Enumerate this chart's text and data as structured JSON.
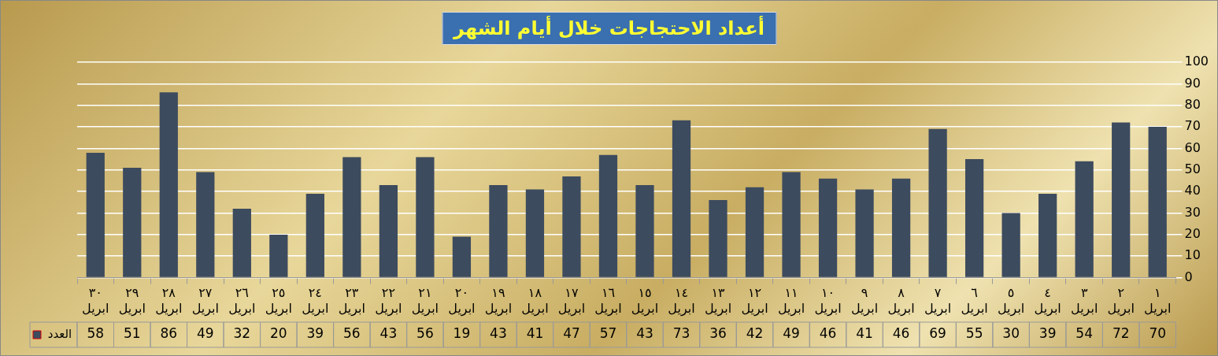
{
  "chart_data": {
    "type": "bar",
    "title": "أعداد الاحتجاجات خلال أيام الشهر",
    "categories": [
      "٣٠ ابريل",
      "٢٩ ابريل",
      "٢٨ ابريل",
      "٢٧ ابريل",
      "٢٦ ابريل",
      "٢٥ ابريل",
      "٢٤ ابريل",
      "٢٣ ابريل",
      "٢٢ ابريل",
      "٢١ ابريل",
      "٢٠ ابريل",
      "١٩ ابريل",
      "١٨ ابريل",
      "١٧ ابريل",
      "١٦ ابريل",
      "١٥ ابريل",
      "١٤ ابريل",
      "١٣ ابريل",
      "١٢ ابريل",
      "١١ ابريل",
      "١٠ ابريل",
      "٩ ابريل",
      "٨ ابريل",
      "٧ ابريل",
      "٦ ابريل",
      "٥ ابريل",
      "٤ ابريل",
      "٣ ابريل",
      "٢ ابريل",
      "١ ابريل"
    ],
    "series": [
      {
        "name": "العدد",
        "color": "#3d4b5e",
        "values": [
          58,
          51,
          86,
          49,
          32,
          20,
          39,
          56,
          43,
          56,
          19,
          43,
          41,
          47,
          57,
          43,
          73,
          36,
          42,
          49,
          46,
          41,
          46,
          69,
          55,
          30,
          39,
          54,
          72,
          70
        ]
      }
    ],
    "ylim": [
      0,
      100
    ],
    "yticks": [
      0,
      10,
      20,
      30,
      40,
      50,
      60,
      70,
      80,
      90,
      100
    ],
    "grid": "y",
    "data_labels": true
  }
}
